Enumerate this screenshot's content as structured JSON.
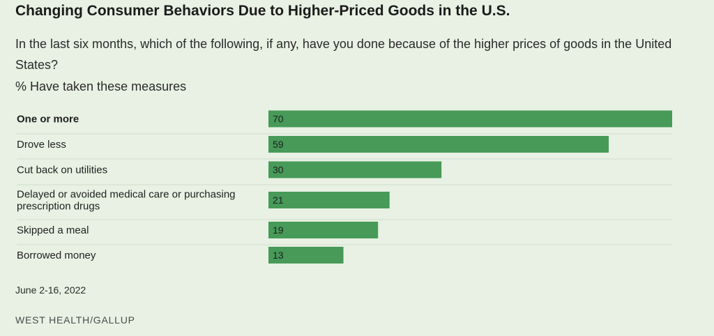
{
  "header": {
    "title": "Changing Consumer Behaviors Due to Higher-Priced Goods in the U.S.",
    "question": "In the last six months, which of the following, if any, have you done because of the higher prices of goods in the United States?",
    "measure": "% Have taken these measures"
  },
  "footer": {
    "dates": "June 2-16, 2022",
    "source": "WEST HEALTH/GALLUP"
  },
  "colors": {
    "bar": "#479a58",
    "background": "#e8f1e3",
    "divider": "#d2ddcc"
  },
  "chart_data": {
    "type": "bar",
    "orientation": "horizontal",
    "categories": [
      "One or more",
      "Drove less",
      "Cut back on utilities",
      "Delayed or avoided medical care or purchasing prescription drugs",
      "Skipped a meal",
      "Borrowed money"
    ],
    "category_lines": [
      [
        "One or more"
      ],
      [
        "Drove less"
      ],
      [
        "Cut back on utilities"
      ],
      [
        "Delayed or avoided medical care or purchasing",
        "prescription drugs"
      ],
      [
        "Skipped a meal"
      ],
      [
        "Borrowed money"
      ]
    ],
    "bold_categories": [
      "One or more"
    ],
    "values": [
      70,
      59,
      30,
      21,
      19,
      13
    ],
    "xlim": [
      0,
      70
    ],
    "grid": false,
    "legend": "none"
  }
}
